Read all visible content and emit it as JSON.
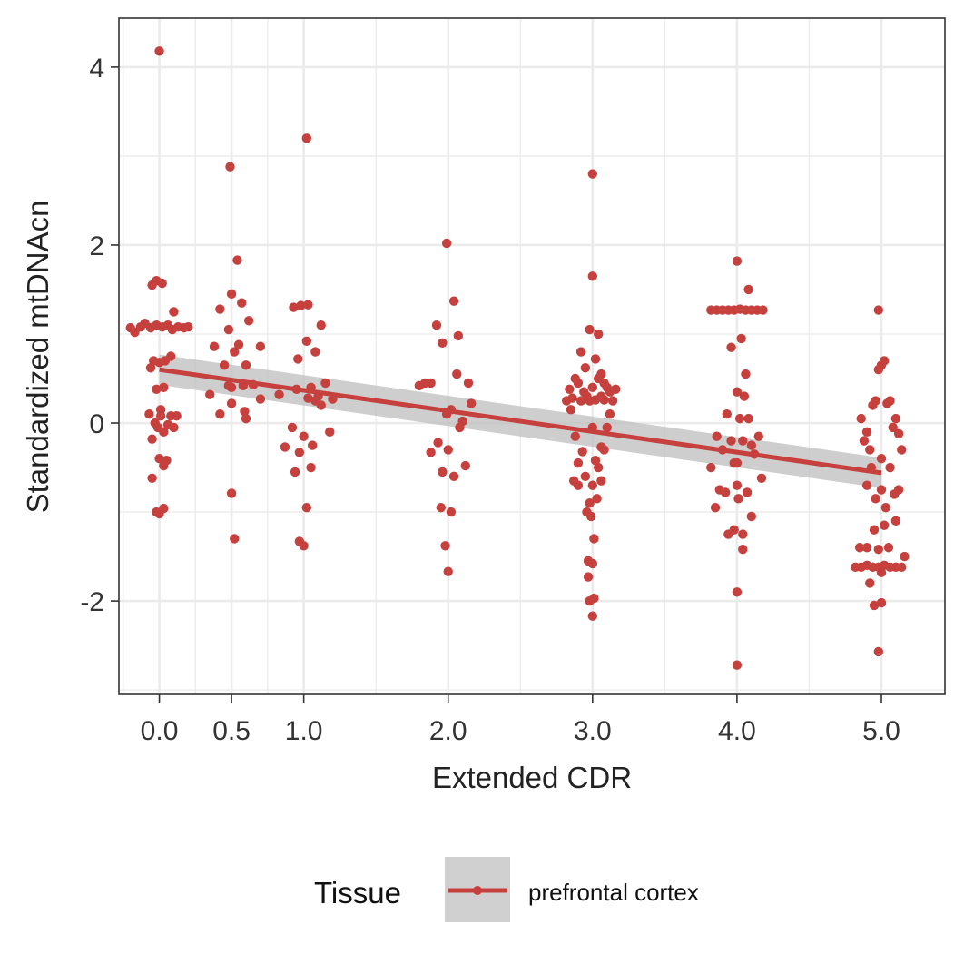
{
  "chart_data": {
    "type": "scatter",
    "xlabel": "Extended CDR",
    "ylabel": "Standardized mtDNAcn",
    "x_ticks": [
      {
        "value": 0.0,
        "label": "0.0"
      },
      {
        "value": 0.5,
        "label": "0.5"
      },
      {
        "value": 1.0,
        "label": "1.0"
      },
      {
        "value": 2.0,
        "label": "2.0"
      },
      {
        "value": 3.0,
        "label": "3.0"
      },
      {
        "value": 4.0,
        "label": "4.0"
      },
      {
        "value": 5.0,
        "label": "5.0"
      }
    ],
    "y_ticks": [
      {
        "value": -2,
        "label": "-2"
      },
      {
        "value": 0,
        "label": "0"
      },
      {
        "value": 2,
        "label": "2"
      },
      {
        "value": 4,
        "label": "4"
      }
    ],
    "xlim": [
      -0.28,
      5.44
    ],
    "ylim": [
      -3.05,
      4.55
    ],
    "grid": true,
    "legend": {
      "title": "Tissue",
      "position": "bottom",
      "entries": [
        "prefrontal cortex"
      ]
    },
    "colors": {
      "points": "#c6403d",
      "line": "#c6403d",
      "band": "#bdbdbd",
      "grid": "#ebebeb"
    },
    "trend": {
      "x0": 0.0,
      "y0": 0.6,
      "x1": 5.0,
      "y1": -0.56,
      "band_lower": [
        0.43,
        -0.73
      ],
      "band_upper": [
        0.77,
        -0.39
      ]
    },
    "series": [
      {
        "name": "prefrontal cortex",
        "points": [
          [
            -0.2,
            1.07
          ],
          [
            -0.17,
            1.02
          ],
          [
            -0.13,
            1.08
          ],
          [
            -0.1,
            1.12
          ],
          [
            -0.06,
            1.07
          ],
          [
            -0.02,
            1.1
          ],
          [
            0.02,
            1.08
          ],
          [
            0.06,
            1.1
          ],
          [
            0.09,
            1.05
          ],
          [
            0.13,
            1.08
          ],
          [
            0.17,
            1.07
          ],
          [
            0.2,
            1.08
          ],
          [
            -0.07,
            0.1
          ],
          [
            -0.05,
            -0.18
          ],
          [
            -0.03,
            0.0
          ],
          [
            -0.01,
            -0.05
          ],
          [
            0.01,
            0.08
          ],
          [
            0.03,
            -0.1
          ],
          [
            -0.02,
            0.38
          ],
          [
            0.03,
            0.4
          ],
          [
            0.08,
            0.08
          ],
          [
            0.1,
            -0.05
          ],
          [
            0.06,
            -0.02
          ],
          [
            0.12,
            0.08
          ],
          [
            -0.06,
            0.62
          ],
          [
            -0.04,
            0.7
          ],
          [
            0.0,
            0.68
          ],
          [
            0.04,
            0.7
          ],
          [
            0.08,
            0.75
          ],
          [
            0.1,
            1.25
          ],
          [
            -0.05,
            1.55
          ],
          [
            -0.02,
            1.6
          ],
          [
            0.02,
            1.57
          ],
          [
            -0.05,
            -0.62
          ],
          [
            0.0,
            -0.4
          ],
          [
            0.05,
            -0.42
          ],
          [
            0.03,
            -0.48
          ],
          [
            -0.02,
            -1.0
          ],
          [
            0.0,
            -1.02
          ],
          [
            0.03,
            -0.96
          ],
          [
            0.0,
            4.18
          ],
          [
            0.01,
            0.15
          ],
          [
            0.35,
            0.32
          ],
          [
            0.38,
            0.86
          ],
          [
            0.42,
            1.28
          ],
          [
            0.45,
            0.65
          ],
          [
            0.42,
            0.1
          ],
          [
            0.48,
            0.42
          ],
          [
            0.5,
            0.22
          ],
          [
            0.52,
            0.8
          ],
          [
            0.55,
            0.88
          ],
          [
            0.58,
            0.42
          ],
          [
            0.6,
            0.65
          ],
          [
            0.62,
            1.15
          ],
          [
            0.65,
            0.43
          ],
          [
            0.7,
            0.27
          ],
          [
            0.7,
            0.86
          ],
          [
            0.5,
            1.45
          ],
          [
            0.54,
            1.83
          ],
          [
            0.57,
            1.35
          ],
          [
            0.59,
            0.13
          ],
          [
            0.6,
            0.05
          ],
          [
            0.48,
            1.05
          ],
          [
            0.5,
            0.4
          ],
          [
            0.49,
            2.88
          ],
          [
            0.5,
            -0.79
          ],
          [
            0.52,
            -1.3
          ],
          [
            0.83,
            0.32
          ],
          [
            0.87,
            -0.27
          ],
          [
            0.92,
            -0.05
          ],
          [
            0.93,
            1.3
          ],
          [
            0.95,
            0.38
          ],
          [
            0.96,
            0.72
          ],
          [
            0.98,
            1.32
          ],
          [
            1.0,
            -0.15
          ],
          [
            1.02,
            0.92
          ],
          [
            1.03,
            0.28
          ],
          [
            1.05,
            0.4
          ],
          [
            1.06,
            -0.25
          ],
          [
            1.08,
            0.8
          ],
          [
            1.1,
            0.3
          ],
          [
            1.12,
            0.2
          ],
          [
            1.15,
            0.45
          ],
          [
            1.18,
            -0.1
          ],
          [
            1.2,
            0.27
          ],
          [
            1.12,
            1.1
          ],
          [
            0.94,
            -0.55
          ],
          [
            0.97,
            -0.33
          ],
          [
            1.0,
            -1.38
          ],
          [
            1.02,
            -0.95
          ],
          [
            1.03,
            1.33
          ],
          [
            0.97,
            -1.33
          ],
          [
            1.05,
            -0.5
          ],
          [
            1.02,
            3.2
          ],
          [
            1.08,
            0.25
          ],
          [
            1.8,
            0.42
          ],
          [
            1.84,
            0.45
          ],
          [
            1.88,
            0.45
          ],
          [
            1.92,
            1.1
          ],
          [
            1.96,
            0.9
          ],
          [
            1.99,
            0.1
          ],
          [
            2.02,
            0.15
          ],
          [
            2.06,
            0.55
          ],
          [
            2.1,
            0.02
          ],
          [
            2.14,
            0.45
          ],
          [
            2.16,
            0.22
          ],
          [
            2.04,
            1.37
          ],
          [
            2.07,
            0.98
          ],
          [
            1.88,
            -0.33
          ],
          [
            1.93,
            -0.22
          ],
          [
            1.96,
            -0.55
          ],
          [
            2.0,
            -0.3
          ],
          [
            2.04,
            -0.6
          ],
          [
            2.08,
            -0.05
          ],
          [
            2.12,
            -0.48
          ],
          [
            1.95,
            -0.95
          ],
          [
            1.98,
            -1.38
          ],
          [
            2.02,
            -1.0
          ],
          [
            2.0,
            -1.67
          ],
          [
            1.99,
            2.02
          ],
          [
            2.82,
            0.25
          ],
          [
            2.84,
            0.38
          ],
          [
            2.86,
            0.28
          ],
          [
            2.88,
            0.5
          ],
          [
            2.9,
            0.45
          ],
          [
            2.92,
            0.25
          ],
          [
            2.94,
            0.35
          ],
          [
            2.96,
            0.3
          ],
          [
            2.98,
            0.25
          ],
          [
            3.0,
            0.4
          ],
          [
            3.02,
            0.26
          ],
          [
            3.04,
            0.5
          ],
          [
            3.06,
            0.3
          ],
          [
            3.08,
            0.26
          ],
          [
            3.1,
            0.4
          ],
          [
            3.12,
            0.35
          ],
          [
            3.14,
            0.25
          ],
          [
            3.16,
            0.38
          ],
          [
            2.85,
            0.15
          ],
          [
            2.88,
            -0.15
          ],
          [
            2.9,
            -0.45
          ],
          [
            2.92,
            0.8
          ],
          [
            2.95,
            0.62
          ],
          [
            2.98,
            1.05
          ],
          [
            3.0,
            -0.05
          ],
          [
            3.02,
            0.72
          ],
          [
            3.04,
            1.0
          ],
          [
            3.06,
            0.55
          ],
          [
            3.08,
            0.45
          ],
          [
            3.1,
            -0.05
          ],
          [
            3.12,
            0.1
          ],
          [
            3.06,
            -0.27
          ],
          [
            2.87,
            -0.65
          ],
          [
            2.9,
            -0.7
          ],
          [
            2.93,
            -0.32
          ],
          [
            2.95,
            -0.6
          ],
          [
            2.98,
            -0.9
          ],
          [
            3.0,
            -0.7
          ],
          [
            3.02,
            -0.42
          ],
          [
            3.04,
            -0.5
          ],
          [
            3.06,
            -0.65
          ],
          [
            3.08,
            -0.3
          ],
          [
            3.03,
            -0.85
          ],
          [
            2.96,
            -1.0
          ],
          [
            2.99,
            -1.05
          ],
          [
            3.01,
            -1.3
          ],
          [
            2.97,
            -1.55
          ],
          [
            3.0,
            -1.58
          ],
          [
            2.97,
            -1.73
          ],
          [
            2.98,
            -2.0
          ],
          [
            3.01,
            -1.97
          ],
          [
            3.0,
            -2.17
          ],
          [
            3.0,
            1.65
          ],
          [
            3.0,
            2.8
          ],
          [
            3.82,
            1.27
          ],
          [
            3.86,
            1.27
          ],
          [
            3.9,
            1.27
          ],
          [
            3.94,
            1.27
          ],
          [
            3.98,
            1.27
          ],
          [
            4.02,
            1.28
          ],
          [
            4.06,
            1.27
          ],
          [
            4.1,
            1.27
          ],
          [
            4.14,
            1.27
          ],
          [
            4.18,
            1.27
          ],
          [
            4.0,
            1.82
          ],
          [
            4.08,
            1.5
          ],
          [
            3.96,
            0.85
          ],
          [
            4.03,
            0.95
          ],
          [
            3.82,
            -0.5
          ],
          [
            3.86,
            -0.15
          ],
          [
            3.9,
            -0.3
          ],
          [
            3.93,
            0.1
          ],
          [
            3.96,
            -0.2
          ],
          [
            3.98,
            -0.45
          ],
          [
            4.0,
            0.35
          ],
          [
            4.02,
            0.05
          ],
          [
            4.04,
            -0.2
          ],
          [
            4.06,
            0.55
          ],
          [
            4.08,
            0.05
          ],
          [
            4.1,
            -0.25
          ],
          [
            4.12,
            -0.35
          ],
          [
            4.15,
            -0.15
          ],
          [
            4.17,
            -0.62
          ],
          [
            4.05,
            0.3
          ],
          [
            4.0,
            -0.45
          ],
          [
            3.85,
            -0.95
          ],
          [
            3.88,
            -0.75
          ],
          [
            3.92,
            -0.78
          ],
          [
            3.94,
            -1.25
          ],
          [
            3.98,
            -1.2
          ],
          [
            4.01,
            -0.85
          ],
          [
            4.04,
            -1.25
          ],
          [
            4.07,
            -0.78
          ],
          [
            4.1,
            -1.05
          ],
          [
            4.0,
            -0.7
          ],
          [
            4.04,
            -1.42
          ],
          [
            4.0,
            -1.9
          ],
          [
            4.0,
            -2.72
          ],
          [
            4.82,
            -1.62
          ],
          [
            4.86,
            -1.62
          ],
          [
            4.9,
            -1.6
          ],
          [
            4.94,
            -1.62
          ],
          [
            4.98,
            -1.62
          ],
          [
            5.02,
            -1.6
          ],
          [
            5.06,
            -1.62
          ],
          [
            5.1,
            -1.62
          ],
          [
            5.14,
            -1.62
          ],
          [
            5.16,
            -1.5
          ],
          [
            4.85,
            -1.4
          ],
          [
            4.9,
            -1.4
          ],
          [
            4.95,
            -1.2
          ],
          [
            4.98,
            -1.42
          ],
          [
            5.02,
            -1.15
          ],
          [
            5.05,
            -1.4
          ],
          [
            5.1,
            -1.1
          ],
          [
            4.92,
            -1.8
          ],
          [
            5.0,
            -1.68
          ],
          [
            4.86,
            0.05
          ],
          [
            4.88,
            -0.2
          ],
          [
            4.9,
            -0.1
          ],
          [
            4.92,
            -0.3
          ],
          [
            4.94,
            0.2
          ],
          [
            4.96,
            0.25
          ],
          [
            4.98,
            0.6
          ],
          [
            5.0,
            0.65
          ],
          [
            5.02,
            0.7
          ],
          [
            5.04,
            0.22
          ],
          [
            5.06,
            0.25
          ],
          [
            5.08,
            -0.05
          ],
          [
            5.1,
            0.05
          ],
          [
            5.12,
            -0.12
          ],
          [
            5.14,
            -0.3
          ],
          [
            4.9,
            -0.7
          ],
          [
            4.93,
            -0.5
          ],
          [
            4.96,
            -0.85
          ],
          [
            5.0,
            -0.75
          ],
          [
            5.03,
            -0.95
          ],
          [
            5.06,
            -0.5
          ],
          [
            5.09,
            -0.8
          ],
          [
            5.12,
            -0.75
          ],
          [
            5.0,
            -0.4
          ],
          [
            4.95,
            -2.05
          ],
          [
            5.0,
            -2.02
          ],
          [
            4.98,
            -2.57
          ],
          [
            4.98,
            1.27
          ]
        ]
      }
    ]
  }
}
